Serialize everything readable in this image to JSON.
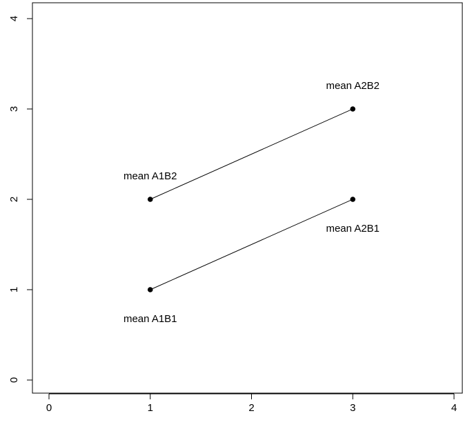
{
  "chart_data": {
    "type": "line",
    "xlim": [
      0,
      4
    ],
    "ylim": [
      0,
      4
    ],
    "x_ticks": [
      "0",
      "1",
      "2",
      "3",
      "4"
    ],
    "y_ticks": [
      "0",
      "1",
      "2",
      "3",
      "4"
    ],
    "grid": false,
    "legend": "none",
    "series": [
      {
        "points": [
          {
            "x": 1,
            "y": 1,
            "label": "mean A1B1",
            "label_pos": "below"
          },
          {
            "x": 3,
            "y": 2,
            "label": "mean A2B1",
            "label_pos": "below"
          }
        ]
      },
      {
        "points": [
          {
            "x": 1,
            "y": 2,
            "label": "mean A1B2",
            "label_pos": "above"
          },
          {
            "x": 3,
            "y": 3,
            "label": "mean A2B2",
            "label_pos": "above"
          }
        ]
      }
    ],
    "colors": {
      "line": "#000000",
      "point": "#000000",
      "axis": "#000000"
    }
  }
}
